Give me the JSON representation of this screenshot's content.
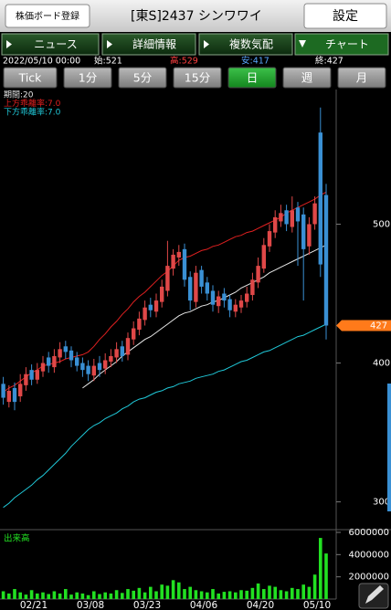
{
  "top_bar": {
    "register_button": "株価ボード登録",
    "title": "[東S]2437 シンワワイ",
    "settings_button": "設定"
  },
  "tabs": [
    "ニュース",
    "詳細情報",
    "複数気配",
    "チャート"
  ],
  "selected_tab": "チャート",
  "quote": {
    "datetime": "2022/05/10 00:00",
    "open": "始:521",
    "high": "高:529",
    "low": "安:417",
    "close": "終:427"
  },
  "periods": [
    "Tick",
    "1分",
    "5分",
    "15分",
    "日",
    "週",
    "月"
  ],
  "selected_period": "日",
  "chart_data": [
    {
      "type": "candlestick",
      "categories": [
        null,
        null,
        null,
        null,
        null,
        null,
        null,
        "02/21",
        null,
        null,
        null,
        null,
        null,
        null,
        null,
        null,
        null,
        "03/08",
        null,
        null,
        null,
        null,
        null,
        null,
        null,
        null,
        null,
        "03/23",
        null,
        null,
        null,
        null,
        null,
        null,
        null,
        null,
        null,
        "04/06",
        null,
        null,
        null,
        null,
        null,
        null,
        null,
        null,
        null,
        "04/20",
        null,
        null,
        null,
        null,
        null,
        null,
        null,
        null,
        null,
        "05/10"
      ],
      "open": [
        385,
        372,
        382,
        376,
        384,
        395,
        388,
        394,
        404,
        397,
        404,
        412,
        409,
        404,
        400,
        398,
        391,
        400,
        396,
        401,
        404,
        412,
        406,
        417,
        424,
        431,
        442,
        437,
        444,
        452,
        468,
        476,
        482,
        462,
        444,
        467,
        458,
        452,
        441,
        450,
        446,
        437,
        440,
        444,
        449,
        458,
        468,
        484,
        494,
        502,
        510,
        498,
        512,
        507,
        484,
        500,
        566,
        521
      ],
      "high": [
        390,
        384,
        386,
        392,
        397,
        399,
        400,
        405,
        408,
        410,
        415,
        416,
        412,
        408,
        404,
        402,
        403,
        405,
        407,
        410,
        415,
        416,
        422,
        430,
        437,
        445,
        447,
        450,
        460,
        488,
        482,
        485,
        486,
        466,
        470,
        470,
        462,
        456,
        452,
        454,
        449,
        446,
        449,
        455,
        465,
        476,
        490,
        500,
        510,
        514,
        514,
        520,
        516,
        512,
        505,
        520,
        584,
        529
      ],
      "low": [
        370,
        368,
        366,
        372,
        380,
        384,
        385,
        390,
        393,
        393,
        400,
        403,
        397,
        394,
        390,
        387,
        387,
        390,
        392,
        397,
        400,
        401,
        402,
        413,
        420,
        427,
        433,
        433,
        440,
        448,
        463,
        470,
        455,
        438,
        440,
        450,
        445,
        437,
        436,
        440,
        433,
        433,
        436,
        440,
        445,
        454,
        465,
        480,
        490,
        498,
        495,
        494,
        470,
        445,
        478,
        496,
        462,
        417
      ],
      "close": [
        375,
        380,
        372,
        385,
        392,
        388,
        395,
        400,
        398,
        405,
        410,
        408,
        402,
        398,
        395,
        392,
        398,
        395,
        402,
        405,
        410,
        405,
        418,
        425,
        432,
        440,
        438,
        445,
        455,
        470,
        478,
        480,
        460,
        445,
        465,
        455,
        450,
        442,
        448,
        445,
        438,
        442,
        445,
        450,
        460,
        470,
        485,
        495,
        505,
        508,
        500,
        510,
        502,
        482,
        500,
        515,
        471,
        427
      ],
      "up_color": "#e04848",
      "down_color": "#3a90d4",
      "series": [
        {
          "name": "期間:20",
          "color": "#e8e8e8",
          "values": [
            null,
            null,
            null,
            null,
            null,
            null,
            null,
            null,
            null,
            null,
            null,
            null,
            null,
            null,
            382,
            385,
            388,
            392,
            395,
            398,
            401,
            405,
            408,
            411,
            414,
            417,
            419,
            422,
            425,
            428,
            431,
            434,
            436,
            437,
            439,
            441,
            442,
            444,
            445,
            447,
            449,
            451,
            454,
            456,
            458,
            460,
            462,
            465,
            467,
            469,
            471,
            473,
            475,
            477,
            479,
            481,
            483,
            485
          ]
        },
        {
          "name": "上方乖離率:7.0",
          "color": "#e02020",
          "values": [
            379,
            382,
            384,
            387,
            390,
            393,
            395,
            398,
            399,
            400,
            401,
            403,
            404,
            405,
            406,
            408,
            412,
            417,
            421,
            426,
            430,
            435,
            439,
            444,
            448,
            451,
            455,
            459,
            463,
            466,
            470,
            474,
            476,
            477,
            479,
            481,
            482,
            484,
            485,
            487,
            489,
            491,
            492,
            494,
            495,
            497,
            499,
            501,
            503,
            505,
            508,
            510,
            512,
            514,
            516,
            518,
            521,
            523
          ]
        },
        {
          "name": "下方乖離率:7.0",
          "color": "#20c8d8",
          "values": [
            296,
            299,
            303,
            306,
            309,
            312,
            316,
            319,
            323,
            327,
            331,
            335,
            340,
            344,
            348,
            352,
            355,
            357,
            360,
            362,
            364,
            367,
            369,
            372,
            374,
            375,
            377,
            379,
            380,
            382,
            383,
            385,
            386,
            387,
            389,
            390,
            391,
            392,
            394,
            395,
            397,
            399,
            401,
            402,
            404,
            406,
            408,
            409,
            411,
            413,
            415,
            417,
            419,
            420,
            422,
            424,
            426,
            428
          ]
        }
      ],
      "ylim": [
        280,
        597
      ],
      "yticks": [
        300,
        400,
        500
      ],
      "last_price": 427,
      "last_price_color": "#ff7a1a"
    },
    {
      "type": "bar",
      "title": "出来高",
      "color": "#22e022",
      "values": [
        700000,
        500000,
        900000,
        600000,
        400000,
        800000,
        500000,
        600000,
        450000,
        700000,
        500000,
        900000,
        400000,
        600000,
        500000,
        350000,
        700000,
        450000,
        600000,
        500000,
        800000,
        550000,
        900000,
        750000,
        1000000,
        600000,
        1100000,
        700000,
        1300000,
        1200000,
        1700000,
        1500000,
        900000,
        1100000,
        800000,
        700000,
        600000,
        900000,
        500000,
        650000,
        700000,
        600000,
        800000,
        750000,
        1000000,
        1400000,
        900000,
        1200000,
        1100000,
        800000,
        700000,
        1000000,
        900000,
        1300000,
        1100000,
        2200000,
        5500000,
        4100000
      ],
      "ylim": [
        0,
        6000000
      ],
      "yticks": [
        2000000,
        4000000,
        6000000
      ]
    }
  ]
}
